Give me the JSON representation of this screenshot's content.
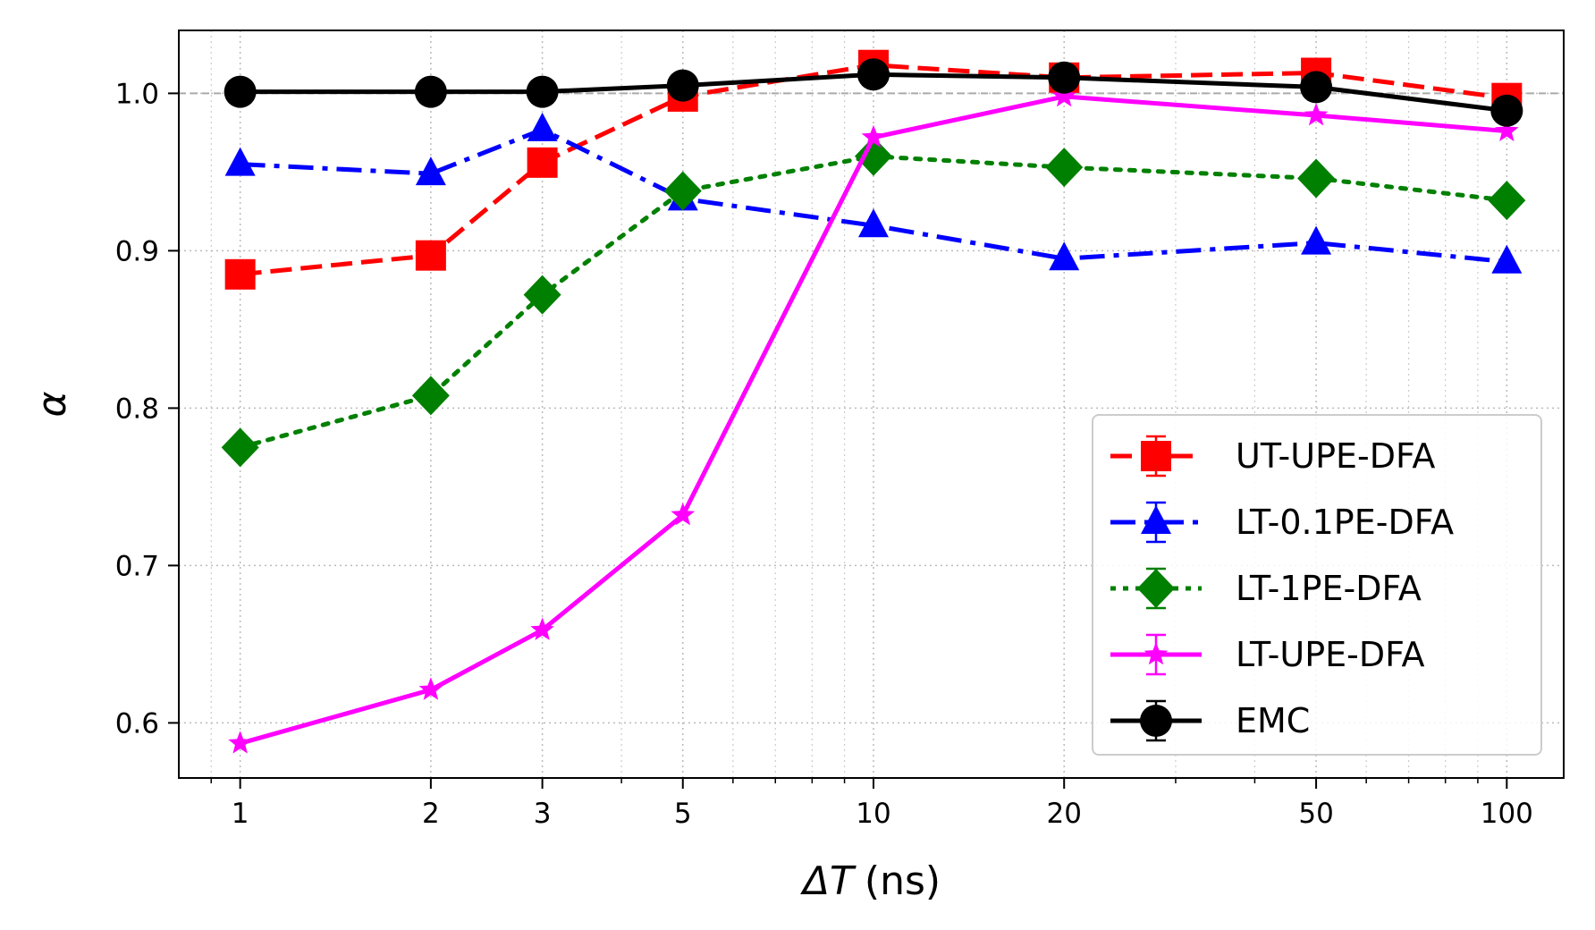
{
  "chart_data": {
    "type": "line",
    "xscale": "log",
    "xlabel_symbol": "ΔT",
    "xlabel_unit": "(ns)",
    "ylabel": "α",
    "xlim": [
      0.8,
      123
    ],
    "ylim": [
      0.565,
      1.04
    ],
    "x": [
      1,
      2,
      3,
      5,
      10,
      20,
      50,
      100
    ],
    "x_tick_labels": [
      "1",
      "2",
      "3",
      "5",
      "10",
      "20",
      "50",
      "100"
    ],
    "y_ticks": [
      0.6,
      0.7,
      0.8,
      0.9,
      1.0
    ],
    "y_tick_labels": [
      "0.6",
      "0.7",
      "0.8",
      "0.9",
      "1.0"
    ],
    "reference_line": 1.0,
    "grid": true,
    "legend_position": "lower-right",
    "series": [
      {
        "name": "UT-UPE-DFA",
        "color": "#ff0000",
        "marker": "square",
        "linestyle": "dashed",
        "values": [
          0.885,
          0.897,
          0.956,
          0.998,
          1.018,
          1.01,
          1.013,
          0.997
        ]
      },
      {
        "name": "LT-0.1PE-DFA",
        "color": "#0000ff",
        "marker": "triangle",
        "linestyle": "dashdot",
        "values": [
          0.955,
          0.949,
          0.977,
          0.933,
          0.916,
          0.895,
          0.905,
          0.893
        ]
      },
      {
        "name": "LT-1PE-DFA",
        "color": "#008000",
        "marker": "diamond",
        "linestyle": "dotted",
        "values": [
          0.775,
          0.808,
          0.872,
          0.938,
          0.96,
          0.953,
          0.946,
          0.932
        ]
      },
      {
        "name": "LT-UPE-DFA",
        "color": "#ff00ff",
        "marker": "star",
        "linestyle": "solid",
        "values": [
          0.587,
          0.621,
          0.659,
          0.732,
          0.972,
          0.998,
          0.986,
          0.976
        ]
      },
      {
        "name": "EMC",
        "color": "#000000",
        "marker": "circle",
        "linestyle": "solid",
        "values": [
          1.001,
          1.001,
          1.001,
          1.005,
          1.012,
          1.01,
          1.004,
          0.989
        ]
      }
    ]
  }
}
